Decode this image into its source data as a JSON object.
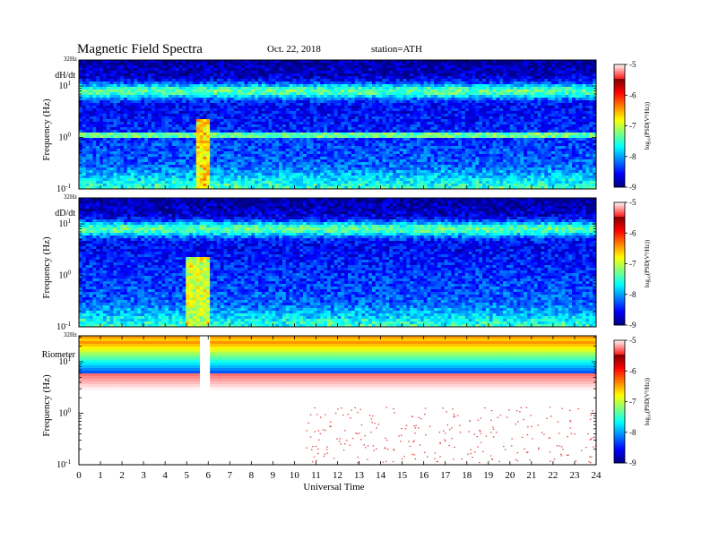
{
  "header": {
    "title": "Magnetic  Field  Spectra",
    "date": "Oct. 22, 2018",
    "station": "station=ATH"
  },
  "chart_data": [
    {
      "type": "heatmap",
      "panel_label": "dH/dt",
      "top_tick": "32Hz",
      "ylabel": "Frequency  (Hz)",
      "yscale": "log",
      "ylim": [
        0.1,
        32
      ],
      "yticks": [
        {
          "exp": "-1"
        },
        {
          "exp": "0"
        },
        {
          "exp": "1"
        }
      ],
      "xlim": [
        0,
        24
      ],
      "colorbar": {
        "label": "log₁₀(PSD(V²/Hz))",
        "ticks": [
          "-5",
          "-6",
          "-7",
          "-8",
          "-9"
        ],
        "range": [
          -9,
          -5
        ]
      },
      "features": [
        {
          "kind": "band",
          "freq": 8,
          "value": -6.9
        },
        {
          "kind": "line",
          "freq": 1.1,
          "value": -7.1
        },
        {
          "kind": "burst",
          "t0": 5.5,
          "t1": 6.0,
          "value": -6.6
        }
      ]
    },
    {
      "type": "heatmap",
      "panel_label": "dD/dt",
      "top_tick": "32Hz",
      "ylabel": "Frequency  (Hz)",
      "yscale": "log",
      "ylim": [
        0.1,
        32
      ],
      "yticks": [
        {
          "exp": "-1"
        },
        {
          "exp": "0"
        },
        {
          "exp": "1"
        }
      ],
      "xlim": [
        0,
        24
      ],
      "colorbar": {
        "label": "log₁₀(PSD(V²/Hz))",
        "ticks": [
          "-5",
          "-6",
          "-7",
          "-8",
          "-9"
        ],
        "range": [
          -9,
          -5
        ]
      },
      "features": [
        {
          "kind": "band",
          "freq": 8,
          "value": -7.0
        },
        {
          "kind": "burst",
          "t0": 5.0,
          "t1": 6.0,
          "value": -6.9
        }
      ]
    },
    {
      "type": "heatmap",
      "panel_label": "Riometer",
      "top_tick": "32Hz",
      "ylabel": "Frequency  (Hz)",
      "yscale": "log",
      "ylim": [
        0.1,
        32
      ],
      "yticks": [
        {
          "exp": "-1"
        },
        {
          "exp": "0"
        },
        {
          "exp": "1"
        }
      ],
      "xlim": [
        0,
        24
      ],
      "xlabel": "Universal Time",
      "xticks": [
        "0",
        "1",
        "2",
        "3",
        "4",
        "5",
        "6",
        "7",
        "8",
        "9",
        "10",
        "11",
        "12",
        "13",
        "14",
        "15",
        "16",
        "17",
        "18",
        "19",
        "20",
        "21",
        "22",
        "23",
        "24"
      ],
      "colorbar": {
        "label": "log₁₀(PSD(V²/Hz))",
        "ticks": [
          "-5",
          "-6",
          "-7",
          "-8",
          "-9"
        ],
        "range": [
          -9,
          -5
        ]
      },
      "features": [
        {
          "kind": "gap",
          "t0": 5.6,
          "t1": 6.0
        }
      ]
    }
  ]
}
